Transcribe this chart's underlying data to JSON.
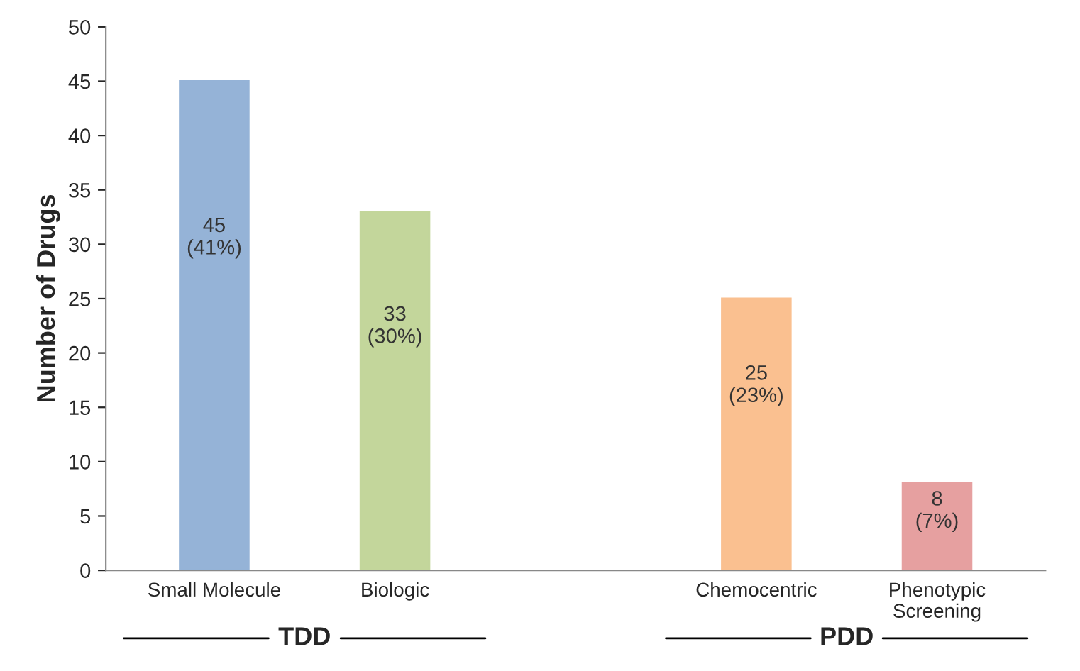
{
  "chart_data": {
    "type": "bar",
    "ylabel": "Number of Drugs",
    "categories": [
      "Small Molecule",
      "Biologic",
      null,
      "Chemocentric",
      "Phenotypic\nScreening"
    ],
    "values": [
      45,
      33,
      null,
      25,
      8
    ],
    "colors": [
      "#95b3d7",
      "#c3d69b",
      "#ffffff",
      "#fac090",
      "#e6a0a0"
    ],
    "value_labels": [
      "45\n(41%)",
      "33\n(30%)",
      null,
      "25\n(23%)",
      "8\n(7%)"
    ],
    "ylim": [
      0,
      50
    ],
    "yticks": [
      0,
      5,
      10,
      15,
      20,
      25,
      30,
      35,
      40,
      45,
      50
    ],
    "grid": false,
    "legend": false,
    "annotations": [
      "TDD",
      "PDD"
    ]
  }
}
